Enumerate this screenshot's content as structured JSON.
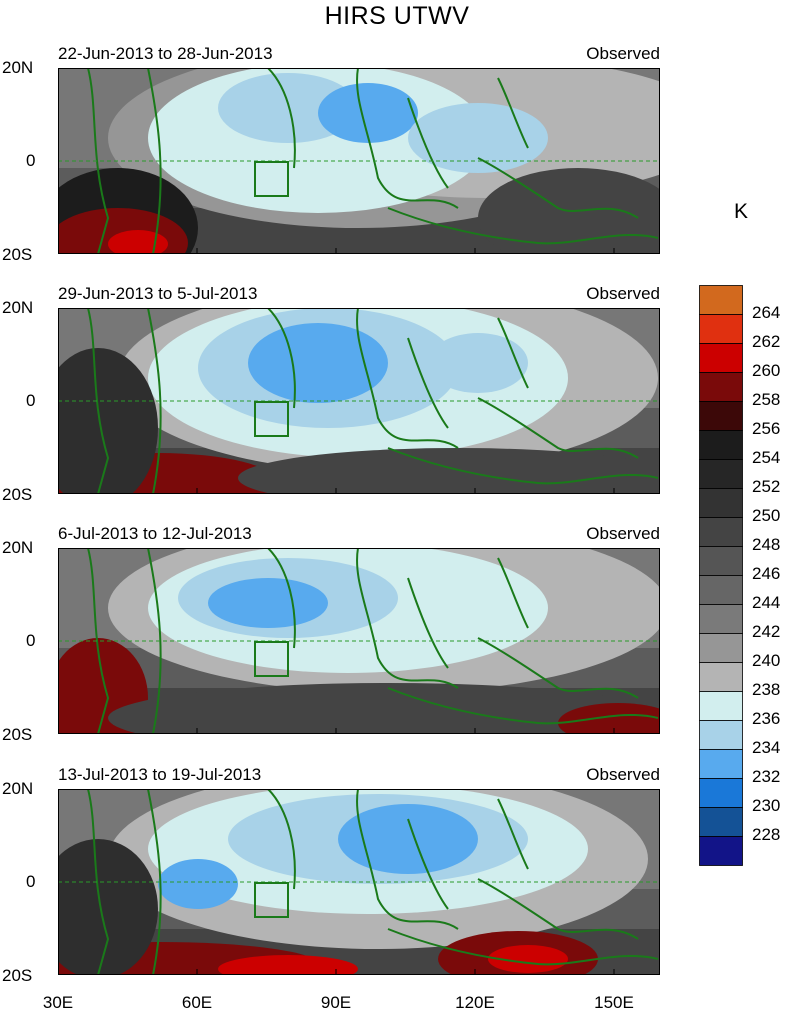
{
  "title": "HIRS UTWV",
  "units": "K",
  "panels": [
    {
      "date_range": "22-Jun-2013 to 28-Jun-2013",
      "label": "Observed"
    },
    {
      "date_range": "29-Jun-2013 to 5-Jul-2013",
      "label": "Observed"
    },
    {
      "date_range": "6-Jul-2013 to 12-Jul-2013",
      "label": "Observed"
    },
    {
      "date_range": "13-Jul-2013 to 19-Jul-2013",
      "label": "Observed"
    }
  ],
  "lat_labels": [
    "20N",
    "0",
    "20S"
  ],
  "lon_labels": [
    "30E",
    "60E",
    "90E",
    "120E",
    "150E"
  ],
  "colorbar": {
    "levels": [
      "264",
      "262",
      "260",
      "258",
      "256",
      "254",
      "252",
      "250",
      "248",
      "246",
      "244",
      "242",
      "240",
      "238",
      "236",
      "234",
      "232",
      "230",
      "228"
    ],
    "colors": [
      "#d2691e",
      "#e03010",
      "#cc0000",
      "#7a0a0a",
      "#3c0808",
      "#1c1c1c",
      "#262626",
      "#333333",
      "#444444",
      "#555555",
      "#666666",
      "#7a7a7a",
      "#969696",
      "#b4b4b4",
      "#d2eeee",
      "#a8d2e8",
      "#58aaee",
      "#1a78d8",
      "#145296",
      "#121488"
    ]
  }
}
